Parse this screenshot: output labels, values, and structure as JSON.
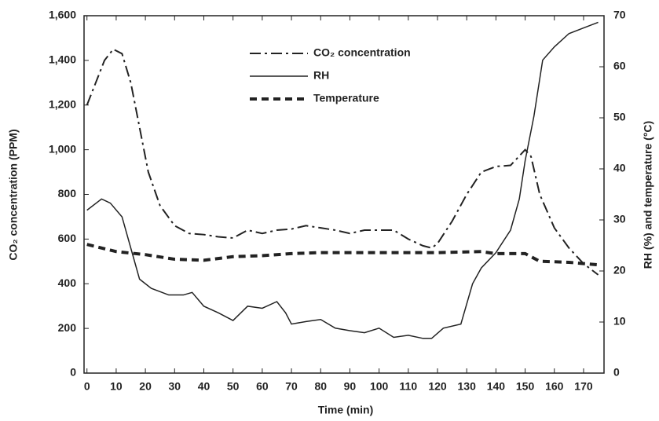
{
  "chart_data": {
    "type": "line",
    "x_label": "Time (min)",
    "y_label": "CO₂ concentration (PPM)",
    "y2_label": "RH (%) and temperature (°C)",
    "xlim": [
      -1,
      177
    ],
    "xticks": [
      0,
      10,
      20,
      30,
      40,
      50,
      60,
      70,
      80,
      90,
      100,
      110,
      120,
      130,
      140,
      150,
      160,
      170
    ],
    "ylim": [
      0,
      1600
    ],
    "yticks": [
      0,
      200,
      400,
      600,
      800,
      {
        "value": 1000,
        "label": "1,000"
      },
      {
        "value": 1200,
        "label": "1,200"
      },
      {
        "value": 1400,
        "label": "1,400"
      },
      {
        "value": 1600,
        "label": "1,600"
      }
    ],
    "y2lim": [
      0,
      70
    ],
    "y2ticks": [
      0,
      10,
      20,
      30,
      40,
      50,
      60,
      70
    ],
    "series": [
      {
        "name": "CO₂ concentration",
        "color": "#222",
        "linestyle": "dashdot",
        "x": [
          0,
          3,
          6,
          9,
          12,
          15,
          18,
          21,
          25,
          30,
          35,
          40,
          45,
          50,
          55,
          60,
          65,
          70,
          75,
          80,
          85,
          90,
          95,
          100,
          105,
          110,
          115,
          118,
          120,
          125,
          130,
          135,
          140,
          145,
          150,
          152,
          155,
          160,
          165,
          170,
          175
        ],
        "values": [
          1200,
          1300,
          1400,
          1450,
          1430,
          1300,
          1100,
          900,
          750,
          660,
          625,
          620,
          610,
          605,
          640,
          625,
          640,
          645,
          660,
          650,
          640,
          625,
          640,
          640,
          640,
          600,
          570,
          560,
          580,
          680,
          800,
          900,
          925,
          930,
          1000,
          970,
          800,
          650,
          560,
          490,
          440
        ]
      },
      {
        "name": "RH",
        "color": "#222",
        "linestyle": "solid",
        "axis": "y2",
        "x": [
          0,
          5,
          8,
          12,
          15,
          18,
          22,
          28,
          33,
          36,
          40,
          45,
          50,
          55,
          60,
          65,
          68,
          70,
          75,
          80,
          85,
          90,
          95,
          100,
          105,
          110,
          115,
          118,
          122,
          128,
          132,
          135,
          140,
          145,
          148,
          150,
          153,
          156,
          160,
          165,
          170,
          175
        ],
        "values": [
          31.9,
          34.1,
          33.3,
          30.6,
          24.5,
          18.4,
          16.6,
          15.3,
          15.3,
          15.8,
          13.1,
          11.8,
          10.3,
          13.1,
          12.7,
          14,
          11.8,
          9.6,
          10.1,
          10.5,
          8.8,
          8.3,
          7.9,
          8.8,
          7,
          7.4,
          6.8,
          6.8,
          8.8,
          9.6,
          17.5,
          20.6,
          23.6,
          28,
          34.1,
          41.6,
          50.3,
          61.3,
          63.9,
          66.5,
          67.6,
          68.7
        ]
      },
      {
        "name": "Temperature",
        "color": "#222",
        "linestyle": "dashed",
        "axis": "y2",
        "x": [
          0,
          10,
          20,
          30,
          40,
          50,
          60,
          70,
          80,
          100,
          120,
          135,
          140,
          150,
          155,
          165,
          175
        ],
        "values": [
          25.2,
          23.8,
          23.2,
          22.3,
          22.1,
          22.8,
          23,
          23.4,
          23.6,
          23.6,
          23.6,
          23.8,
          23.4,
          23.4,
          21.9,
          21.7,
          21.2
        ]
      }
    ]
  }
}
